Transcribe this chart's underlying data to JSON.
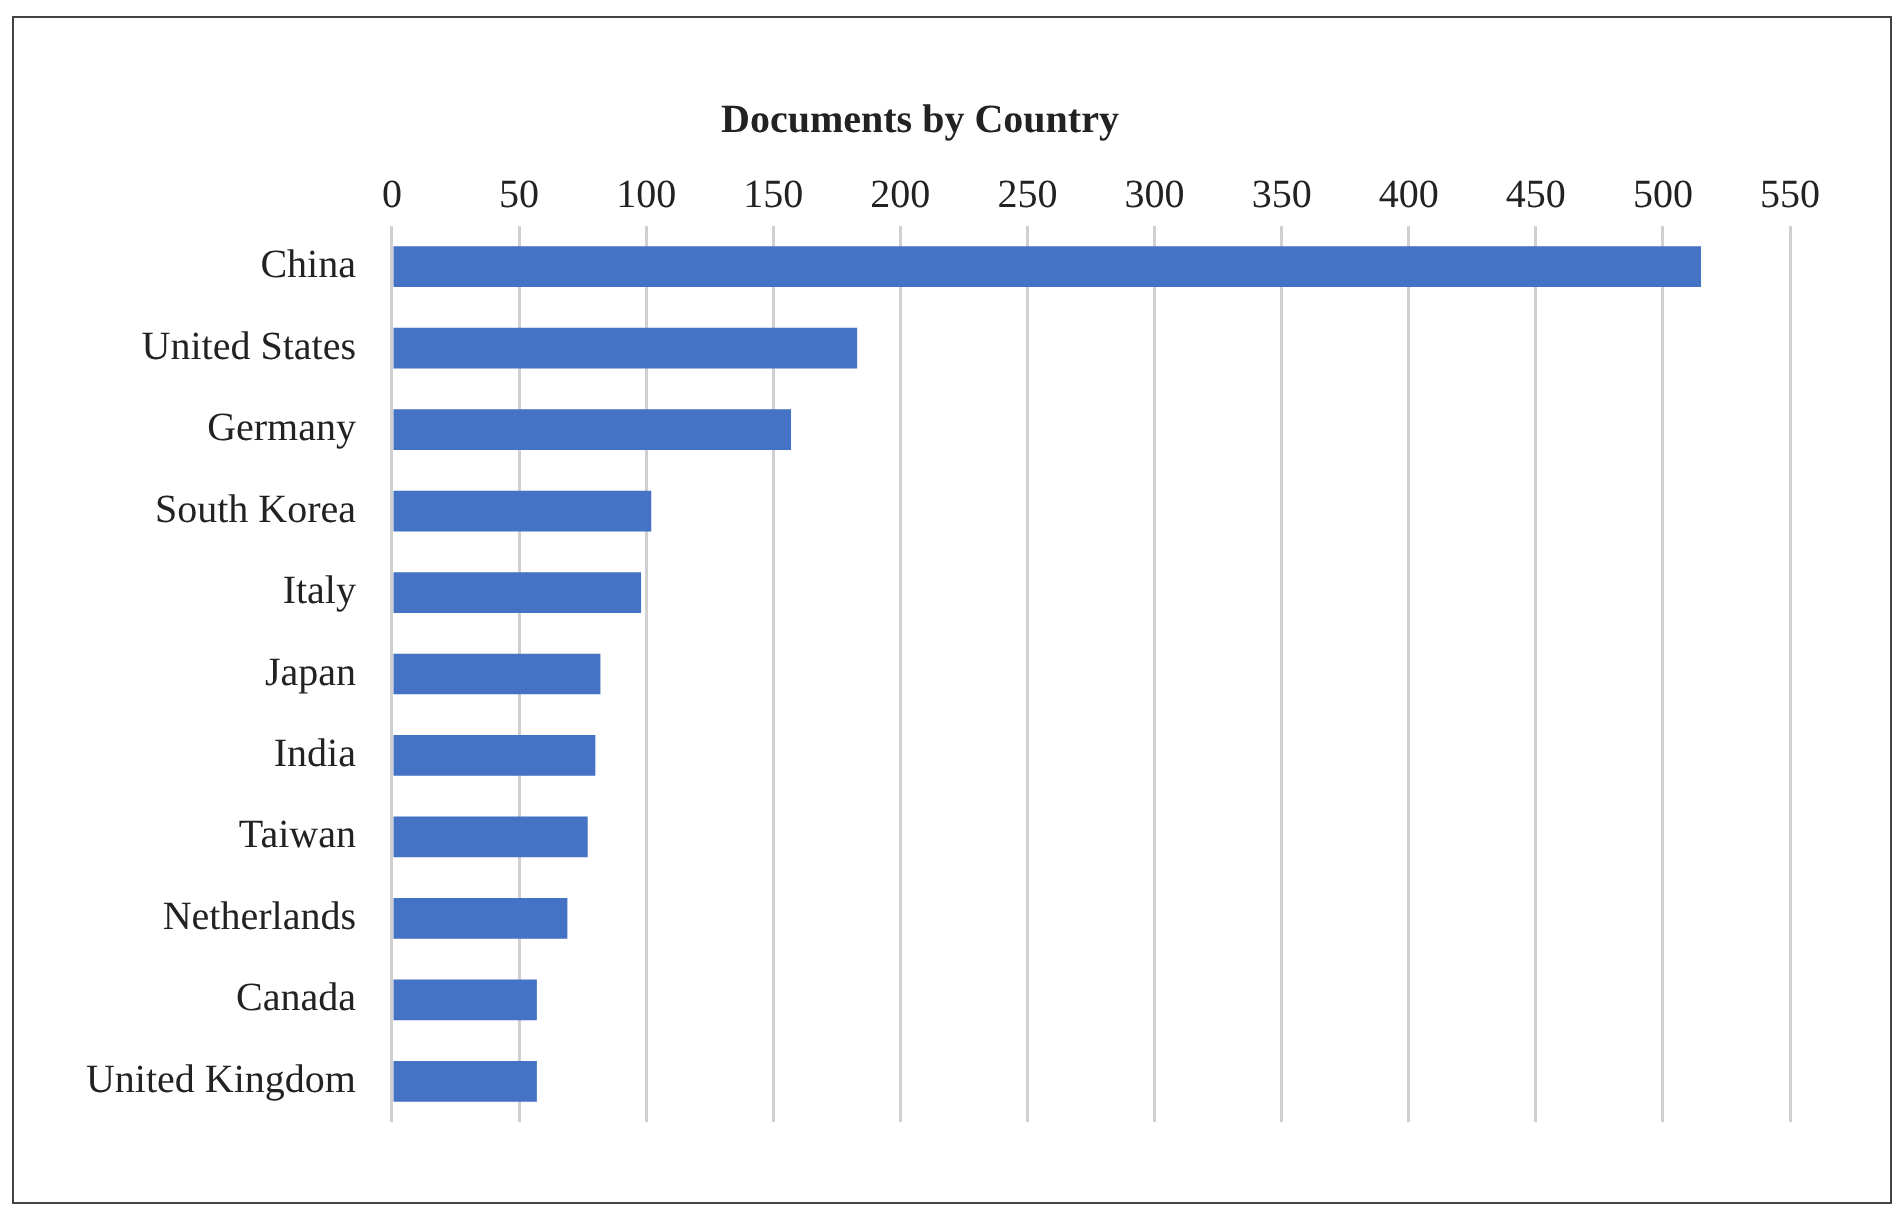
{
  "chart_data": {
    "type": "bar",
    "orientation": "horizontal",
    "title": "Documents by Country",
    "categories": [
      "China",
      "United States",
      "Germany",
      "South Korea",
      "Italy",
      "Japan",
      "India",
      "Taiwan",
      "Netherlands",
      "Canada",
      "United Kingdom"
    ],
    "values": [
      515,
      183,
      157,
      102,
      98,
      82,
      80,
      77,
      69,
      57,
      57
    ],
    "color": "#4472c4",
    "xlim": [
      0,
      550
    ],
    "xticks": [
      0,
      50,
      100,
      150,
      200,
      250,
      300,
      350,
      400,
      450,
      500,
      550
    ],
    "grid": "x"
  }
}
